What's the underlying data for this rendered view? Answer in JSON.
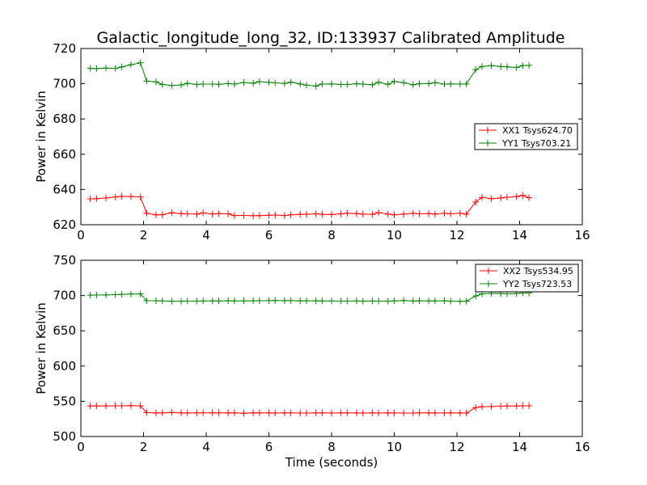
{
  "figure": {
    "title": "Galactic_longitude_long_32, ID:133937 Calibrated Amplitude"
  },
  "chart_data": [
    {
      "type": "line",
      "title": "Galactic_longitude_long_32, ID:133937 Calibrated Amplitude",
      "xlabel": "",
      "ylabel": "Power in Kelvin",
      "xlim": [
        0,
        16
      ],
      "ylim": [
        620,
        720
      ],
      "xticks": [
        0,
        2,
        4,
        6,
        8,
        10,
        12,
        14,
        16
      ],
      "yticks": [
        620,
        640,
        660,
        680,
        700,
        720
      ],
      "legend_position": "right",
      "grid": false,
      "x": [
        0.3,
        0.5,
        0.8,
        1.1,
        1.3,
        1.6,
        1.9,
        2.1,
        2.4,
        2.6,
        2.9,
        3.2,
        3.4,
        3.7,
        3.9,
        4.2,
        4.4,
        4.7,
        4.9,
        5.2,
        5.5,
        5.7,
        6.0,
        6.2,
        6.5,
        6.7,
        7.0,
        7.2,
        7.5,
        7.7,
        8.0,
        8.3,
        8.5,
        8.8,
        9.0,
        9.3,
        9.5,
        9.8,
        10.0,
        10.3,
        10.6,
        10.8,
        11.1,
        11.3,
        11.6,
        11.8,
        12.1,
        12.3,
        12.6,
        12.8,
        13.1,
        13.4,
        13.6,
        13.9,
        14.1,
        14.3
      ],
      "series": [
        {
          "name": "XX1 Tsys624.70",
          "color": "#ff0000",
          "values": [
            634.7,
            634.8,
            635.2,
            635.7,
            636.1,
            636.0,
            635.8,
            626.5,
            625.6,
            625.7,
            626.8,
            626.3,
            626.2,
            626.0,
            626.7,
            626.1,
            626.3,
            626.2,
            625.2,
            625.3,
            625.1,
            625.2,
            625.4,
            625.5,
            625.2,
            625.6,
            625.9,
            625.9,
            626.2,
            625.9,
            625.8,
            626.2,
            626.5,
            626.3,
            626.0,
            625.9,
            626.9,
            626.1,
            625.6,
            626.0,
            626.5,
            626.2,
            626.3,
            626.0,
            626.5,
            626.2,
            626.5,
            626.0,
            632.9,
            635.5,
            634.8,
            635.2,
            635.6,
            635.9,
            636.6,
            635.3
          ]
        },
        {
          "name": "YY1 Tsys703.21",
          "color": "#008000",
          "values": [
            708.7,
            708.6,
            708.9,
            708.7,
            709.5,
            710.8,
            711.9,
            701.5,
            701.0,
            699.6,
            699.0,
            699.3,
            700.2,
            699.6,
            699.8,
            699.8,
            699.7,
            700.1,
            699.8,
            700.7,
            700.3,
            701.2,
            700.8,
            700.5,
            700.2,
            700.9,
            699.9,
            699.2,
            698.7,
            699.8,
            699.9,
            699.6,
            699.6,
            700.0,
            699.8,
            699.4,
            700.8,
            699.7,
            701.3,
            700.6,
            699.4,
            700.0,
            700.1,
            700.6,
            699.8,
            699.9,
            699.8,
            699.9,
            708.0,
            709.8,
            710.3,
            709.8,
            709.6,
            709.2,
            710.3,
            710.4
          ]
        }
      ]
    },
    {
      "type": "line",
      "title": "",
      "xlabel": "Time (seconds)",
      "ylabel": "Power in Kelvin",
      "xlim": [
        0,
        16
      ],
      "ylim": [
        500,
        750
      ],
      "xticks": [
        0,
        2,
        4,
        6,
        8,
        10,
        12,
        14,
        16
      ],
      "yticks": [
        500,
        550,
        600,
        650,
        700,
        750
      ],
      "legend_position": "top-right",
      "grid": false,
      "x": [
        0.3,
        0.5,
        0.8,
        1.1,
        1.3,
        1.6,
        1.9,
        2.1,
        2.4,
        2.6,
        2.9,
        3.2,
        3.4,
        3.7,
        3.9,
        4.2,
        4.4,
        4.7,
        4.9,
        5.2,
        5.5,
        5.7,
        6.0,
        6.2,
        6.5,
        6.7,
        7.0,
        7.2,
        7.5,
        7.7,
        8.0,
        8.3,
        8.5,
        8.8,
        9.0,
        9.3,
        9.5,
        9.8,
        10.0,
        10.3,
        10.6,
        10.8,
        11.1,
        11.3,
        11.6,
        11.8,
        12.1,
        12.3,
        12.6,
        12.8,
        13.1,
        13.4,
        13.6,
        13.9,
        14.1,
        14.3
      ],
      "series": [
        {
          "name": "XX2 Tsys534.95",
          "color": "#ff0000",
          "values": [
            543.3,
            543.3,
            543.5,
            543.6,
            543.6,
            543.9,
            543.5,
            533.9,
            533.4,
            533.5,
            534.1,
            533.6,
            533.4,
            533.5,
            533.7,
            533.6,
            533.5,
            533.6,
            533.6,
            533.0,
            533.5,
            533.6,
            533.5,
            533.4,
            533.5,
            533.5,
            533.3,
            533.3,
            533.5,
            533.5,
            533.2,
            533.5,
            533.6,
            533.4,
            533.3,
            533.5,
            533.2,
            533.5,
            533.4,
            533.3,
            533.2,
            533.5,
            533.6,
            533.4,
            533.4,
            533.5,
            533.4,
            533.3,
            541.0,
            542.3,
            542.5,
            543.0,
            543.3,
            543.2,
            543.6,
            543.6
          ]
        },
        {
          "name": "YY2 Tsys723.53",
          "color": "#008000",
          "values": [
            700.5,
            700.7,
            700.9,
            701.2,
            701.7,
            702.1,
            702.2,
            692.7,
            692.6,
            692.3,
            692.0,
            692.0,
            692.1,
            692.0,
            692.3,
            692.3,
            692.2,
            692.6,
            692.3,
            692.4,
            692.5,
            692.6,
            692.8,
            692.9,
            692.8,
            692.8,
            692.4,
            692.5,
            692.4,
            692.3,
            692.2,
            692.1,
            692.1,
            692.3,
            692.0,
            692.2,
            692.1,
            692.0,
            692.4,
            692.9,
            692.2,
            692.5,
            692.2,
            692.4,
            692.5,
            692.0,
            691.8,
            691.9,
            699.4,
            702.3,
            703.0,
            702.9,
            702.4,
            702.8,
            703.5,
            703.7
          ]
        }
      ]
    }
  ]
}
